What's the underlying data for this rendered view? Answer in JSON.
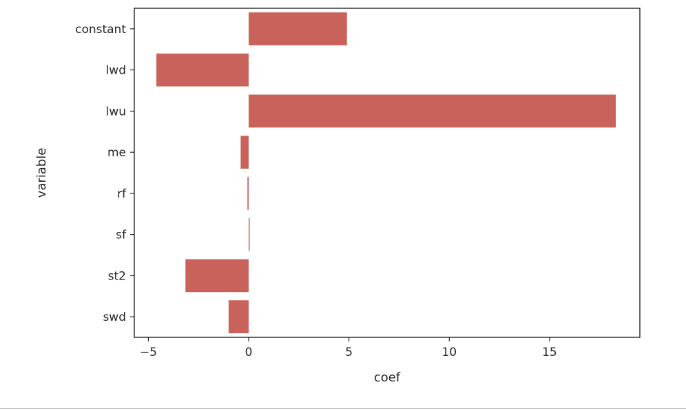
{
  "chart_data": {
    "type": "bar",
    "orientation": "horizontal",
    "categories": [
      "constant",
      "lwd",
      "lwu",
      "me",
      "rf",
      "sf",
      "st2",
      "swd"
    ],
    "values": [
      4.9,
      -4.6,
      18.3,
      -0.4,
      -0.06,
      0.05,
      -3.15,
      -1.0
    ],
    "xlabel": "coef",
    "ylabel": "variable",
    "xlim": [
      -5.7,
      19.5
    ],
    "xticks": [
      -5,
      0,
      5,
      10,
      15
    ],
    "xtick_labels": [
      "−5",
      "0",
      "5",
      "10",
      "15"
    ],
    "grid": false,
    "bar_color": "#c9625a"
  }
}
